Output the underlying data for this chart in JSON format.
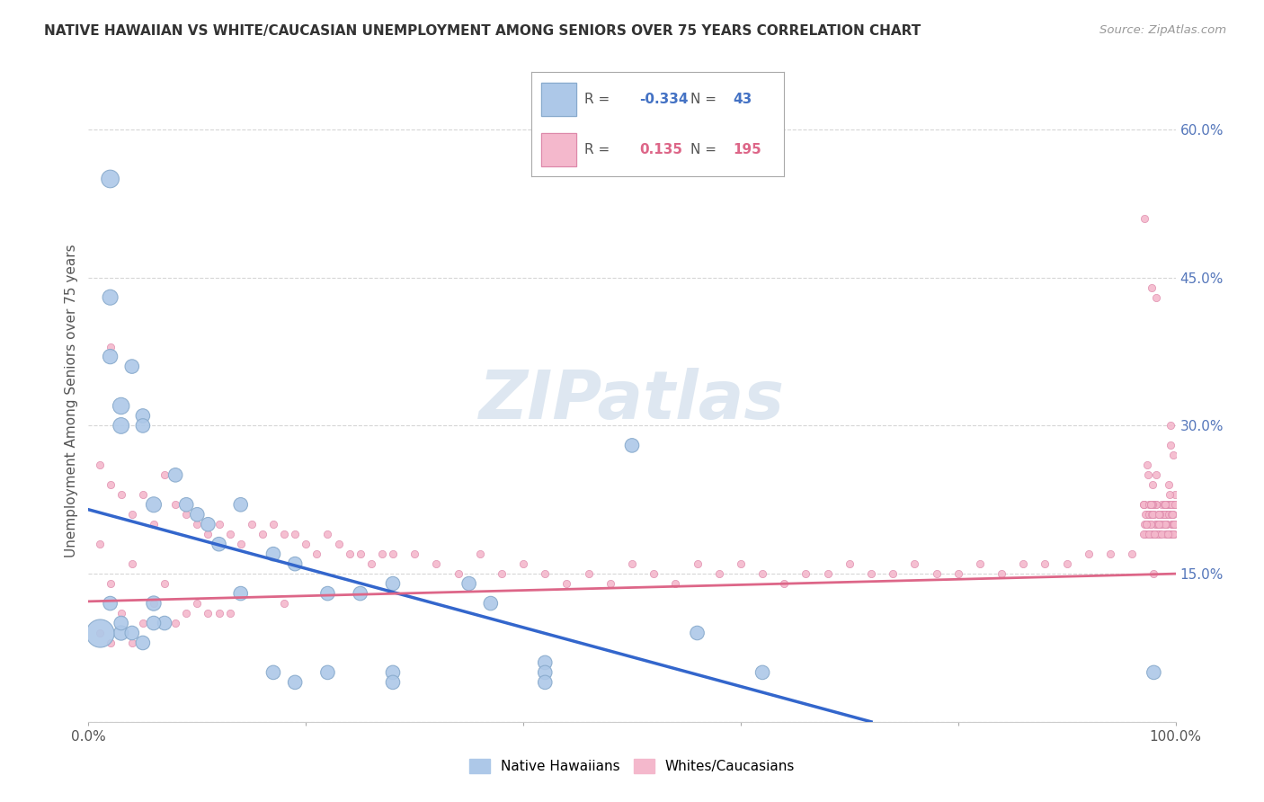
{
  "title": "NATIVE HAWAIIAN VS WHITE/CAUCASIAN UNEMPLOYMENT AMONG SENIORS OVER 75 YEARS CORRELATION CHART",
  "source": "Source: ZipAtlas.com",
  "ylabel": "Unemployment Among Seniors over 75 years",
  "xlim": [
    0,
    1.0
  ],
  "ylim": [
    -0.02,
    0.65
  ],
  "plot_ylim": [
    0.0,
    0.65
  ],
  "xtick_positions": [
    0.0,
    0.2,
    0.4,
    0.6,
    0.8,
    1.0
  ],
  "xticklabels": [
    "0.0%",
    "",
    "",
    "",
    "",
    "100.0%"
  ],
  "ytick_positions": [
    0.0,
    0.15,
    0.3,
    0.45,
    0.6
  ],
  "yticklabels": [
    "",
    "15.0%",
    "30.0%",
    "45.0%",
    "60.0%"
  ],
  "ytick_color": "#5577bb",
  "watermark_text": "ZIPatlas",
  "watermark_color": "#c8d8e8",
  "background_color": "#ffffff",
  "grid_color": "#cccccc",
  "blue_color": "#adc8e8",
  "blue_edge_color": "#88aacc",
  "blue_line_color": "#3366cc",
  "pink_color": "#f4b8cc",
  "pink_edge_color": "#dd88aa",
  "pink_line_color": "#dd6688",
  "blue_line_x": [
    0.0,
    0.72
  ],
  "blue_line_y": [
    0.215,
    0.0
  ],
  "pink_line_x": [
    0.0,
    1.0
  ],
  "pink_line_y": [
    0.122,
    0.15
  ],
  "legend_R1": "-0.334",
  "legend_N1": "43",
  "legend_R2": "0.135",
  "legend_N2": "195",
  "legend_color1": "#4472c4",
  "legend_color2": "#dd6688",
  "blue_x": [
    0.02,
    0.02,
    0.02,
    0.03,
    0.03,
    0.03,
    0.04,
    0.05,
    0.05,
    0.06,
    0.06,
    0.07,
    0.08,
    0.09,
    0.1,
    0.11,
    0.12,
    0.14,
    0.14,
    0.17,
    0.17,
    0.19,
    0.22,
    0.22,
    0.25,
    0.28,
    0.28,
    0.35,
    0.37,
    0.42,
    0.42,
    0.5,
    0.56,
    0.62,
    0.98,
    0.02,
    0.03,
    0.04,
    0.05,
    0.06,
    0.19,
    0.28,
    0.42
  ],
  "blue_y": [
    0.55,
    0.43,
    0.37,
    0.32,
    0.3,
    0.09,
    0.36,
    0.31,
    0.08,
    0.22,
    0.12,
    0.1,
    0.25,
    0.22,
    0.21,
    0.2,
    0.18,
    0.22,
    0.13,
    0.17,
    0.05,
    0.16,
    0.13,
    0.05,
    0.13,
    0.14,
    0.05,
    0.14,
    0.12,
    0.06,
    0.05,
    0.28,
    0.09,
    0.05,
    0.05,
    0.12,
    0.1,
    0.09,
    0.3,
    0.1,
    0.04,
    0.04,
    0.04
  ],
  "blue_size": [
    80,
    60,
    55,
    70,
    65,
    55,
    50,
    50,
    50,
    60,
    55,
    50,
    50,
    50,
    50,
    50,
    50,
    50,
    50,
    50,
    50,
    50,
    50,
    50,
    50,
    50,
    50,
    50,
    50,
    50,
    50,
    50,
    50,
    50,
    50,
    50,
    50,
    50,
    50,
    50,
    50,
    50,
    50
  ],
  "blue_extra_x": [
    0.01
  ],
  "blue_extra_y": [
    0.09
  ],
  "blue_extra_size": [
    500
  ],
  "pink_x": [
    0.01,
    0.01,
    0.01,
    0.02,
    0.02,
    0.02,
    0.02,
    0.03,
    0.03,
    0.04,
    0.04,
    0.04,
    0.05,
    0.05,
    0.06,
    0.06,
    0.07,
    0.07,
    0.08,
    0.08,
    0.09,
    0.09,
    0.1,
    0.1,
    0.11,
    0.11,
    0.12,
    0.12,
    0.13,
    0.13,
    0.14,
    0.15,
    0.16,
    0.17,
    0.18,
    0.18,
    0.19,
    0.2,
    0.21,
    0.22,
    0.23,
    0.24,
    0.25,
    0.26,
    0.27,
    0.28,
    0.3,
    0.32,
    0.34,
    0.36,
    0.38,
    0.4,
    0.42,
    0.44,
    0.46,
    0.48,
    0.5,
    0.52,
    0.54,
    0.56,
    0.58,
    0.6,
    0.62,
    0.64,
    0.66,
    0.68,
    0.7,
    0.72,
    0.74,
    0.76,
    0.78,
    0.8,
    0.82,
    0.84,
    0.86,
    0.88,
    0.9,
    0.92,
    0.94,
    0.96,
    0.98,
    0.98,
    0.99,
    1.0,
    1.0,
    1.0,
    1.0,
    1.0,
    1.0,
    1.0,
    1.0,
    1.0,
    1.0,
    1.0,
    1.0,
    1.0,
    1.0,
    1.0,
    1.0,
    1.0,
    1.0,
    1.0,
    1.0,
    1.0,
    1.0,
    1.0,
    1.0,
    1.0,
    1.0,
    1.0,
    1.0,
    1.0,
    1.0,
    1.0,
    1.0,
    1.0,
    1.0,
    1.0,
    1.0,
    1.0,
    1.0,
    1.0,
    1.0,
    1.0,
    1.0,
    1.0,
    1.0,
    1.0,
    1.0,
    1.0,
    1.0,
    1.0,
    1.0,
    1.0,
    1.0,
    1.0,
    1.0,
    1.0,
    1.0,
    1.0,
    1.0,
    1.0,
    1.0,
    1.0,
    1.0,
    1.0,
    1.0,
    1.0,
    1.0,
    1.0,
    1.0,
    1.0,
    1.0,
    1.0,
    1.0,
    1.0,
    1.0,
    1.0,
    1.0,
    1.0,
    1.0,
    1.0,
    1.0,
    1.0,
    1.0,
    1.0,
    1.0,
    1.0,
    1.0,
    1.0,
    1.0,
    1.0,
    1.0,
    1.0,
    1.0,
    1.0,
    1.0,
    1.0,
    1.0,
    1.0,
    1.0,
    1.0,
    1.0,
    1.0,
    1.0,
    1.0,
    1.0,
    1.0
  ],
  "pink_y": [
    0.26,
    0.18,
    0.09,
    0.38,
    0.24,
    0.14,
    0.08,
    0.23,
    0.11,
    0.21,
    0.16,
    0.08,
    0.23,
    0.1,
    0.2,
    0.12,
    0.25,
    0.14,
    0.22,
    0.1,
    0.21,
    0.11,
    0.2,
    0.12,
    0.19,
    0.11,
    0.2,
    0.11,
    0.19,
    0.11,
    0.18,
    0.2,
    0.19,
    0.2,
    0.19,
    0.12,
    0.19,
    0.18,
    0.17,
    0.19,
    0.18,
    0.17,
    0.17,
    0.16,
    0.17,
    0.17,
    0.17,
    0.16,
    0.15,
    0.17,
    0.15,
    0.16,
    0.15,
    0.14,
    0.15,
    0.14,
    0.16,
    0.15,
    0.14,
    0.16,
    0.15,
    0.16,
    0.15,
    0.14,
    0.15,
    0.15,
    0.16,
    0.15,
    0.15,
    0.16,
    0.15,
    0.15,
    0.16,
    0.15,
    0.16,
    0.16,
    0.16,
    0.17,
    0.17,
    0.17,
    0.19,
    0.15,
    0.19,
    0.51,
    0.44,
    0.43,
    0.3,
    0.28,
    0.27,
    0.26,
    0.25,
    0.24,
    0.23,
    0.22,
    0.25,
    0.24,
    0.23,
    0.22,
    0.21,
    0.2,
    0.22,
    0.21,
    0.2,
    0.19,
    0.22,
    0.21,
    0.2,
    0.19,
    0.22,
    0.21,
    0.2,
    0.19,
    0.22,
    0.21,
    0.2,
    0.19,
    0.22,
    0.21,
    0.2,
    0.19,
    0.22,
    0.21,
    0.2,
    0.19,
    0.22,
    0.21,
    0.2,
    0.19,
    0.22,
    0.21,
    0.2,
    0.19,
    0.22,
    0.21,
    0.2,
    0.19,
    0.22,
    0.21,
    0.2,
    0.19,
    0.22,
    0.21,
    0.2,
    0.19,
    0.22,
    0.21,
    0.2,
    0.19,
    0.22,
    0.21,
    0.2,
    0.19,
    0.22,
    0.21,
    0.2,
    0.19,
    0.22,
    0.21,
    0.2,
    0.19,
    0.22,
    0.21,
    0.2,
    0.19,
    0.22,
    0.21,
    0.2,
    0.19,
    0.22,
    0.21,
    0.2,
    0.19,
    0.22,
    0.21,
    0.2,
    0.19,
    0.22,
    0.21,
    0.2,
    0.19,
    0.22,
    0.21,
    0.2,
    0.19,
    0.22,
    0.21,
    0.2,
    0.19
  ]
}
